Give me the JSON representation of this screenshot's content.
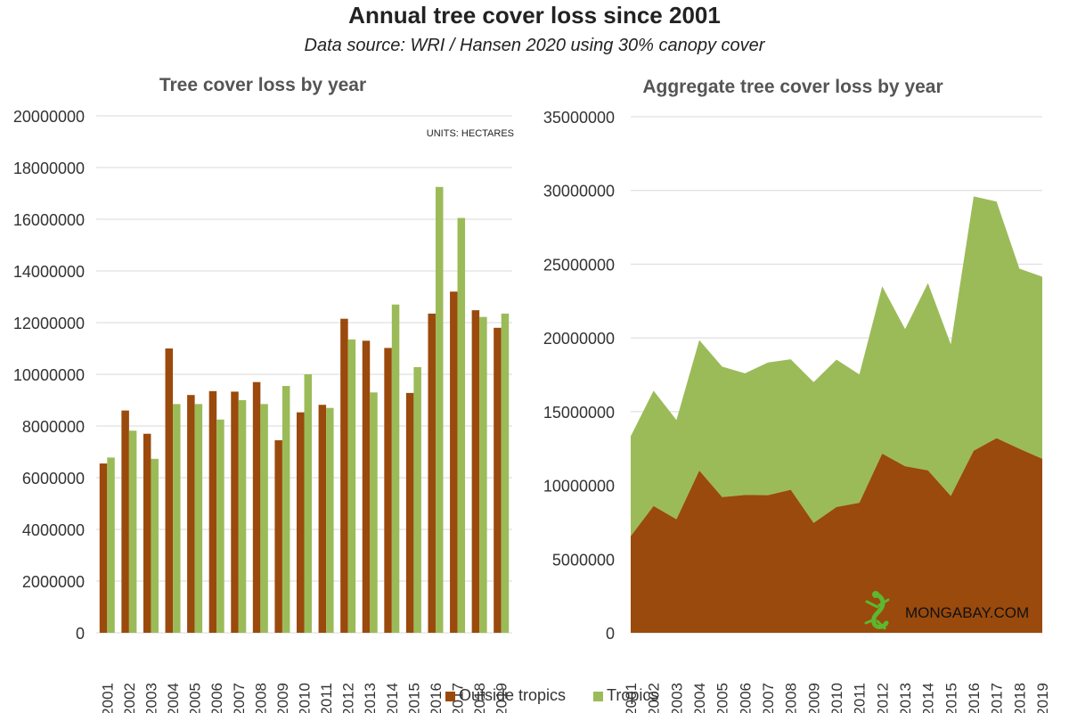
{
  "title": "Annual tree cover loss since 2001",
  "subtitle": "Data source: WRI / Hansen 2020 using 30% canopy cover",
  "units_note": "UNITS: HECTARES",
  "brand": "MONGABAY.COM",
  "logo_icon": "gecko-icon",
  "colors": {
    "outside_tropics": "#9a4a0c",
    "tropics": "#9bbb59",
    "gridline": "#d9d9d9",
    "logo": "#5cb82e"
  },
  "legend": [
    "Outside tropics",
    "Tropics"
  ],
  "chart_data": [
    {
      "type": "bar",
      "title": "Tree cover loss by year",
      "categories": [
        "2001",
        "2002",
        "2003",
        "2004",
        "2005",
        "2006",
        "2007",
        "2008",
        "2009",
        "2010",
        "2011",
        "2012",
        "2013",
        "2014",
        "2015",
        "2016",
        "2017",
        "2018",
        "2019"
      ],
      "series": [
        {
          "name": "Outside tropics",
          "values": [
            6550000,
            8600000,
            7700000,
            11000000,
            9200000,
            9350000,
            9330000,
            9700000,
            7450000,
            8530000,
            8820000,
            12150000,
            11300000,
            11020000,
            9280000,
            12350000,
            13200000,
            12480000,
            11800000
          ]
        },
        {
          "name": "Tropics",
          "values": [
            6780000,
            7820000,
            6730000,
            8850000,
            8850000,
            8250000,
            9000000,
            8850000,
            9550000,
            10000000,
            8700000,
            11350000,
            9300000,
            12700000,
            10280000,
            17250000,
            16050000,
            12220000,
            12350000
          ]
        }
      ],
      "ylim": [
        0,
        20000000
      ],
      "yticks": [
        "0",
        "2000000",
        "4000000",
        "6000000",
        "8000000",
        "10000000",
        "12000000",
        "14000000",
        "16000000",
        "18000000",
        "20000000"
      ],
      "grid": true,
      "legend_position": "bottom"
    },
    {
      "type": "area",
      "stacked": true,
      "title": "Aggregate tree cover loss by year",
      "categories": [
        "2001",
        "2002",
        "2003",
        "2004",
        "2005",
        "2006",
        "2007",
        "2008",
        "2009",
        "2010",
        "2011",
        "2012",
        "2013",
        "2014",
        "2015",
        "2016",
        "2017",
        "2018",
        "2019"
      ],
      "series": [
        {
          "name": "Outside tropics",
          "values": [
            6550000,
            8600000,
            7700000,
            11000000,
            9200000,
            9350000,
            9330000,
            9700000,
            7450000,
            8530000,
            8820000,
            12150000,
            11300000,
            11020000,
            9280000,
            12350000,
            13200000,
            12480000,
            11800000
          ]
        },
        {
          "name": "Tropics",
          "values": [
            6780000,
            7820000,
            6730000,
            8850000,
            8850000,
            8250000,
            9000000,
            8850000,
            9550000,
            10000000,
            8700000,
            11350000,
            9300000,
            12700000,
            10280000,
            17250000,
            16050000,
            12220000,
            12350000
          ]
        }
      ],
      "ylim": [
        0,
        35000000
      ],
      "yticks": [
        "0",
        "5000000",
        "10000000",
        "15000000",
        "20000000",
        "25000000",
        "30000000",
        "35000000"
      ],
      "grid": true,
      "legend_position": "bottom"
    }
  ]
}
